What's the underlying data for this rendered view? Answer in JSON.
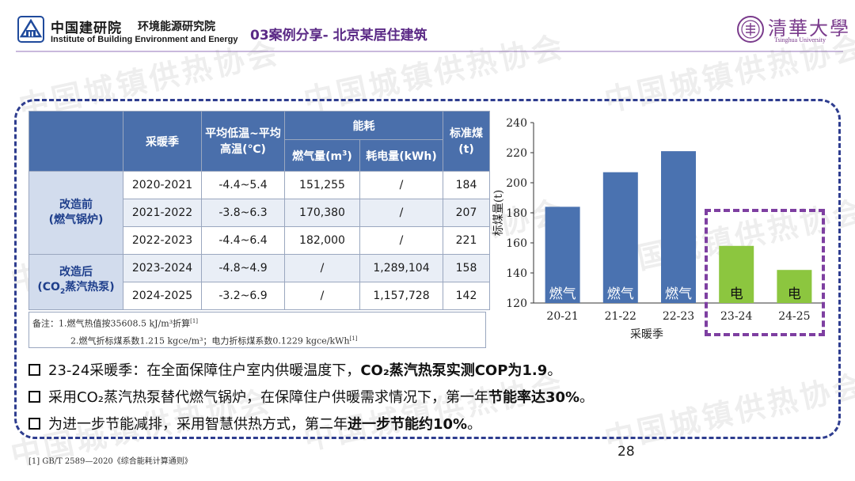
{
  "header": {
    "org_cn": "中国建研院",
    "org_cn2": "环境能源研究院",
    "org_en": "Institute of Building Environment and Energy",
    "slide_title": "03案例分享- 北京某居住建筑",
    "tsinghua_cn": "清華大學",
    "tsinghua_en": "Tsinghua University"
  },
  "table": {
    "col_season": "采暖季",
    "col_temp": "平均低温~平均高温(℃)",
    "col_energy": "能耗",
    "col_gas_pre": "燃气量(m",
    "col_gas_sup": "3",
    "col_gas_post": ")",
    "col_elec": "耗电量(kWh)",
    "col_coal": "标准煤(t)",
    "group_before_1": "改造前",
    "group_before_2": "(燃气锅炉)",
    "group_after_1": "改造后",
    "group_after_2_pre": "(CO",
    "group_after_2_sub": "2",
    "group_after_2_post": "蒸汽热泵)",
    "rows": [
      {
        "season": "2020-2021",
        "temp": "-4.4~5.4",
        "gas": "151,255",
        "elec": "/",
        "coal": "184"
      },
      {
        "season": "2021-2022",
        "temp": "-3.8~6.3",
        "gas": "170,380",
        "elec": "/",
        "coal": "207"
      },
      {
        "season": "2022-2023",
        "temp": "-4.4~6.4",
        "gas": "182,000",
        "elec": "/",
        "coal": "221"
      },
      {
        "season": "2023-2024",
        "temp": "-4.8~4.9",
        "gas": "/",
        "elec": "1,289,104",
        "coal": "158"
      },
      {
        "season": "2024-2025",
        "temp": "-3.2~6.9",
        "gas": "/",
        "elec": "1,157,728",
        "coal": "142"
      }
    ],
    "note_line1_pre": "备注：1.燃气热值按35608.5 kJ/m³折算",
    "note_line1_ref": "[1]",
    "note_line2_pre": "2.燃气折标煤系数1.215 kgce/m³；电力折标煤系数0.1229 kgce/kWh",
    "note_line2_ref": "[1]"
  },
  "chart_data": {
    "type": "bar",
    "categories": [
      "20-21",
      "21-22",
      "22-23",
      "23-24",
      "24-25"
    ],
    "values": [
      184,
      207,
      221,
      158,
      142
    ],
    "bar_labels": [
      "燃气",
      "燃气",
      "燃气",
      "电",
      "电"
    ],
    "colors": [
      "#4a72b0",
      "#4a72b0",
      "#4a72b0",
      "#8cc63f",
      "#8cc63f"
    ],
    "ylim": [
      120,
      240
    ],
    "yticks": [
      120,
      140,
      160,
      180,
      200,
      220,
      240
    ],
    "ylabel": "标煤量(t)",
    "xlabel": "采暖季",
    "grid": false
  },
  "bullets": [
    {
      "pre": "23-24采暖季：在全面保障住户室内供暖温度下，",
      "bold": "CO₂蒸汽热泵实测COP为1.9",
      "post": "。"
    },
    {
      "pre": "采用CO₂蒸汽热泵替代燃气锅炉，在保障住户供暖需求情况下，第一年",
      "bold": "节能率达30%",
      "post": "。"
    },
    {
      "pre": "为进一步节能减排，采用智慧供热方式，第二年",
      "bold": "进一步节能约10%",
      "post": "。"
    }
  ],
  "footnote": "[1] GB/T 2589—2020《综合能耗计算通则》",
  "page_number": "28",
  "watermark": "中国城镇供热协会"
}
